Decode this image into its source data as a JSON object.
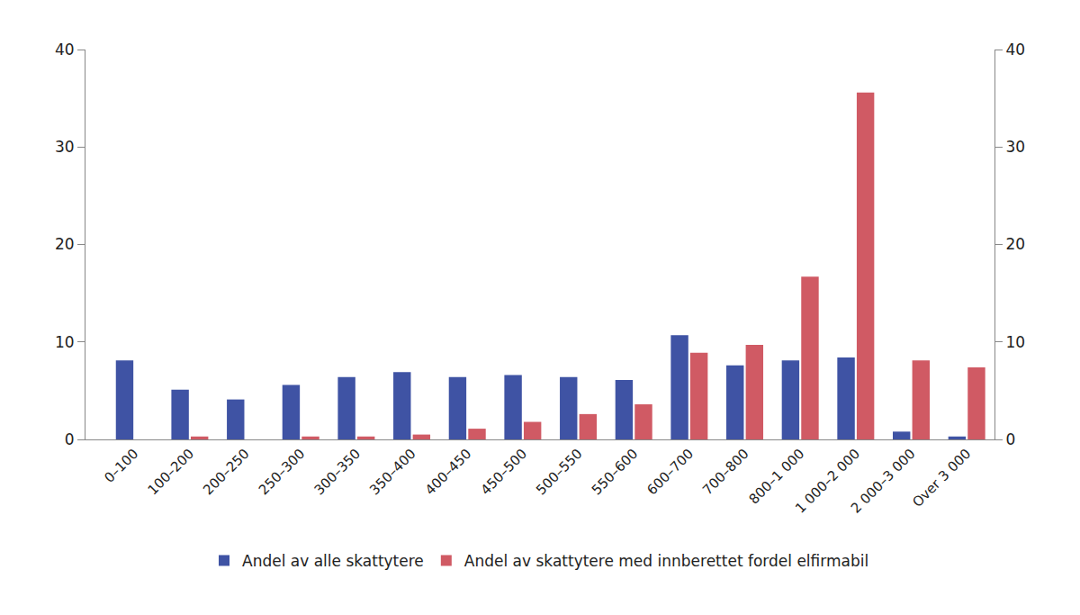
{
  "chart_data": {
    "type": "bar",
    "categories": [
      "0–100",
      "100–200",
      "200–250",
      "250–300",
      "300–350",
      "350–400",
      "400–450",
      "450–500",
      "500–550",
      "550–600",
      "600–700",
      "700–800",
      "800–1 000",
      "1 000–2 000",
      "2 000–3 000",
      "Over 3 000"
    ],
    "series": [
      {
        "name": "Andel av alle skattytere",
        "color": "#3f53a4",
        "values": [
          8.1,
          5.1,
          4.1,
          5.6,
          6.4,
          6.9,
          6.4,
          6.6,
          6.4,
          6.1,
          10.7,
          7.6,
          8.1,
          8.4,
          0.8,
          0.3
        ]
      },
      {
        "name": "Andel av skattytere med innberettet fordel elfirmabil",
        "color": "#d05a64",
        "values": [
          0,
          0.3,
          0,
          0.3,
          0.3,
          0.5,
          1.1,
          1.8,
          2.6,
          3.6,
          8.9,
          9.7,
          16.7,
          35.6,
          8.1,
          7.4
        ]
      }
    ],
    "ylim": [
      0,
      40
    ],
    "yticks": [
      0,
      10,
      20,
      30,
      40
    ],
    "y2lim": [
      0,
      40
    ],
    "y2ticks": [
      0,
      10,
      20,
      30,
      40
    ],
    "grid": false,
    "legend": "bottom"
  }
}
